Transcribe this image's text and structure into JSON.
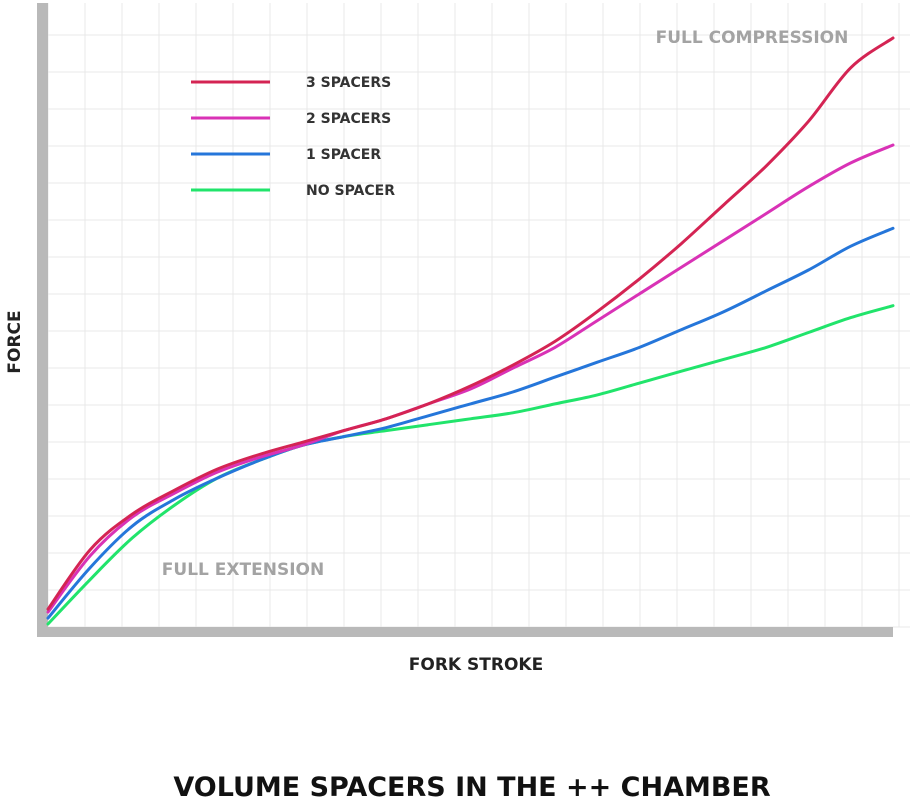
{
  "chart_data": {
    "type": "line",
    "title": "VOLUME SPACERS IN THE ++ CHAMBER",
    "xlabel": "FORK STROKE",
    "ylabel": "FORCE",
    "xlim": [
      0,
      100
    ],
    "ylim": [
      0,
      100
    ],
    "grid": true,
    "legend_position": "top-left",
    "annotations": {
      "full_extension": "FULL EXTENSION",
      "full_compression": "FULL COMPRESSION"
    },
    "x": [
      0,
      5,
      10,
      15,
      20,
      25,
      30,
      35,
      40,
      45,
      50,
      55,
      60,
      65,
      70,
      75,
      80,
      85,
      90,
      95,
      100
    ],
    "series": [
      {
        "name": "3 SPACERS",
        "color": "#d42453",
        "values": [
          3,
          13,
          19,
          23,
          26.5,
          29,
          31,
          33,
          35,
          37.5,
          40.5,
          44,
          48,
          53,
          58.5,
          64.5,
          71,
          77.5,
          85,
          94,
          99
        ]
      },
      {
        "name": "2 SPACERS",
        "color": "#d932b6",
        "values": [
          2.5,
          12,
          18.5,
          22.5,
          26,
          28.5,
          30.5,
          33,
          35,
          37.5,
          40,
          43.5,
          47,
          51.5,
          56,
          60.5,
          65,
          69.5,
          74,
          78,
          81
        ]
      },
      {
        "name": "1 SPACER",
        "color": "#2576da",
        "values": [
          1.5,
          10,
          17,
          21.5,
          25,
          28,
          30.5,
          32,
          33.5,
          35.5,
          37.5,
          39.5,
          42,
          44.5,
          47,
          50,
          53,
          56.5,
          60,
          64,
          67
        ]
      },
      {
        "name": "NO SPACER",
        "color": "#21e46b",
        "values": [
          0.5,
          8,
          15,
          20.5,
          25,
          28,
          30.5,
          32,
          33,
          34,
          35,
          36,
          37.5,
          39,
          41,
          43,
          45,
          47,
          49.5,
          52,
          54
        ]
      }
    ]
  }
}
